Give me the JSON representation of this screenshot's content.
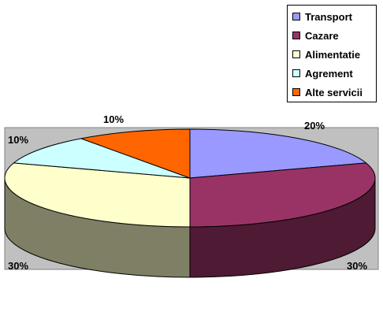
{
  "chart_data": {
    "type": "pie",
    "three_d": true,
    "categories": [
      "Transport",
      "Cazare",
      "Alimentatie",
      "Agrement",
      "Alte servicii"
    ],
    "values": [
      20,
      30,
      30,
      10,
      10
    ],
    "data_labels": [
      "20%",
      "30%",
      "30%",
      "10%",
      "10%"
    ],
    "colors": [
      "#9999FF",
      "#993366",
      "#FFFFCC",
      "#CCFFFF",
      "#FF6600"
    ],
    "side_colors": [
      "#5c5c99",
      "#4f1a33",
      "#7f7f66",
      "#669999",
      "#994000"
    ],
    "background": "#C0C0C0",
    "legend_position": "top-right",
    "title": "",
    "xlabel": "",
    "ylabel": ""
  }
}
